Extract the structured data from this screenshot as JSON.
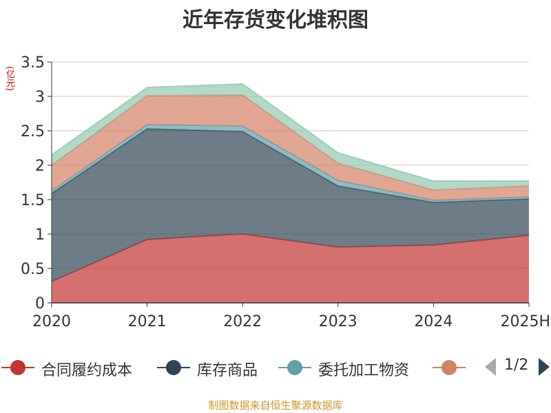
{
  "chart_data": {
    "type": "area",
    "stacked": true,
    "title": "近年存货变化堆积图",
    "y_unit": "(亿元)",
    "categories": [
      "2020",
      "2021",
      "2022",
      "2023",
      "2024",
      "2025H"
    ],
    "ylim": [
      0,
      3.5
    ],
    "yticks": [
      "0",
      "0.5",
      "1",
      "1.5",
      "2",
      "2.5",
      "3",
      "3.5"
    ],
    "grid": true,
    "legend_position": "bottom",
    "series": [
      {
        "name": "合同履约成本",
        "color": "#c23531",
        "values": [
          0.31,
          0.92,
          1.0,
          0.81,
          0.84,
          0.98
        ]
      },
      {
        "name": "库存商品",
        "color": "#2f4554",
        "values": [
          1.28,
          1.61,
          1.49,
          0.89,
          0.62,
          0.53
        ]
      },
      {
        "name": "委托加工物资",
        "color": "#61a0a8",
        "values": [
          0.04,
          0.06,
          0.08,
          0.08,
          0.03,
          0.03
        ]
      },
      {
        "name": "",
        "color": "#d48265",
        "values": [
          0.37,
          0.42,
          0.45,
          0.25,
          0.15,
          0.16
        ]
      },
      {
        "name": "",
        "color": "#91c7ae",
        "values": [
          0.15,
          0.12,
          0.16,
          0.15,
          0.13,
          0.07
        ]
      }
    ]
  },
  "legend": {
    "items": [
      {
        "name": "合同履约成本",
        "color": "#c23531"
      },
      {
        "name": "库存商品",
        "color": "#2f4554"
      },
      {
        "name": "委托加工物资",
        "color": "#61a0a8"
      },
      {
        "name": "",
        "color": "#d48265"
      }
    ],
    "page_text": "1/2"
  },
  "source": "制图数据来自恒生聚源数据库"
}
